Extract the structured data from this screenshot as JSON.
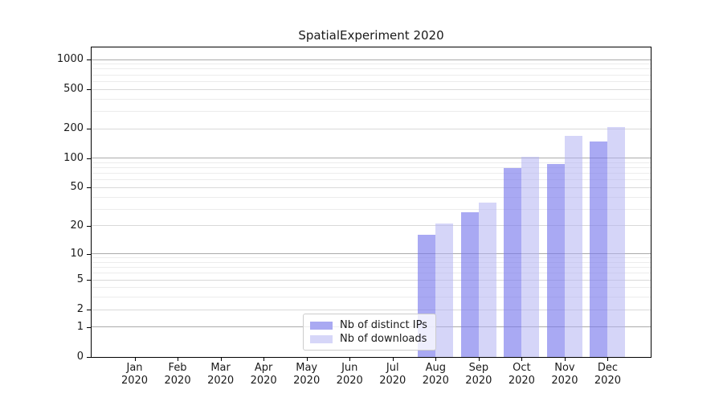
{
  "figure": {
    "title": "SpatialExperiment 2020"
  },
  "chart_data": {
    "type": "bar",
    "title": "SpatialExperiment 2020",
    "categories": [
      "Jan 2020",
      "Feb 2020",
      "Mar 2020",
      "Apr 2020",
      "May 2020",
      "Jun 2020",
      "Jul 2020",
      "Aug 2020",
      "Sep 2020",
      "Oct 2020",
      "Nov 2020",
      "Dec 2020"
    ],
    "series": [
      {
        "name": "Nb of distinct IPs",
        "key": "distinct-ips",
        "color": "#a9a9f2",
        "fill": "rgba(116,116,235,0.62)",
        "values": [
          0,
          0,
          0,
          0,
          0,
          0,
          0,
          16,
          28,
          80,
          88,
          148
        ]
      },
      {
        "name": "Nb of downloads",
        "key": "downloads",
        "color": "#d6d6f8",
        "fill": "rgba(178,178,242,0.55)",
        "values": [
          0,
          0,
          0,
          0,
          0,
          0,
          0,
          21,
          35,
          104,
          170,
          208
        ]
      }
    ],
    "xlabel": "",
    "ylabel": "",
    "y_axis": {
      "scale": "log10(value+1)",
      "ticks": [
        0,
        1,
        2,
        5,
        10,
        20,
        50,
        100,
        200,
        500,
        1000
      ],
      "minor_ticks": [
        3,
        4,
        6,
        7,
        8,
        9,
        30,
        40,
        60,
        70,
        80,
        90,
        300,
        400,
        600,
        700,
        800,
        900
      ],
      "ylim_top": 1300
    },
    "grid": "horizontal major+minor",
    "legend_position": "lower center-left inside plot"
  },
  "colors": {
    "background": "#ffffff",
    "axis": "#000000",
    "grid_decade": "#ababab",
    "grid_major": "#d9d9d9",
    "grid_minor": "#ececec",
    "legend_border": "#cccccc",
    "text": "#1a1a1a"
  }
}
